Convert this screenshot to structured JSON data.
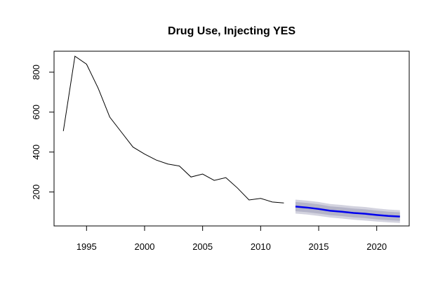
{
  "chart_data": {
    "type": "line",
    "title": "Drug Use, Injecting YES",
    "xlabel": "",
    "ylabel": "",
    "xlim": [
      1992.2,
      2022.8
    ],
    "ylim": [
      30,
      905
    ],
    "x_ticks": [
      1995,
      2000,
      2005,
      2010,
      2015,
      2020
    ],
    "y_ticks": [
      200,
      400,
      600,
      800
    ],
    "grid": false,
    "legend": "none",
    "series": [
      {
        "x": [
          1993,
          1994,
          1995,
          1996,
          1997,
          1998,
          1999,
          2000,
          2001,
          2002,
          2003,
          2004,
          2005,
          2006,
          2007,
          2008,
          2009,
          2010,
          2011,
          2012
        ],
        "y": [
          505,
          880,
          840,
          720,
          575,
          500,
          425,
          390,
          360,
          340,
          330,
          275,
          290,
          258,
          272,
          220,
          160,
          168,
          150,
          145
        ],
        "color": "#000000"
      }
    ],
    "forecast": {
      "x": [
        2013,
        2014,
        2015,
        2016,
        2017,
        2018,
        2019,
        2020,
        2021,
        2022
      ],
      "mean": [
        127,
        122,
        115,
        106,
        101,
        95,
        91,
        85,
        80,
        77
      ],
      "lower_95": [
        92,
        87,
        80,
        72,
        67,
        61,
        57,
        52,
        48,
        45
      ],
      "upper_95": [
        162,
        157,
        150,
        140,
        135,
        129,
        125,
        118,
        112,
        109
      ],
      "lower_80": [
        104,
        99,
        92,
        84,
        79,
        73,
        69,
        63,
        59,
        56
      ],
      "upper_80": [
        150,
        145,
        138,
        128,
        123,
        117,
        113,
        107,
        101,
        98
      ],
      "line_color": "#0000ee",
      "band95_color": "#d3d3df",
      "band80_color": "#b4b4c8"
    }
  }
}
